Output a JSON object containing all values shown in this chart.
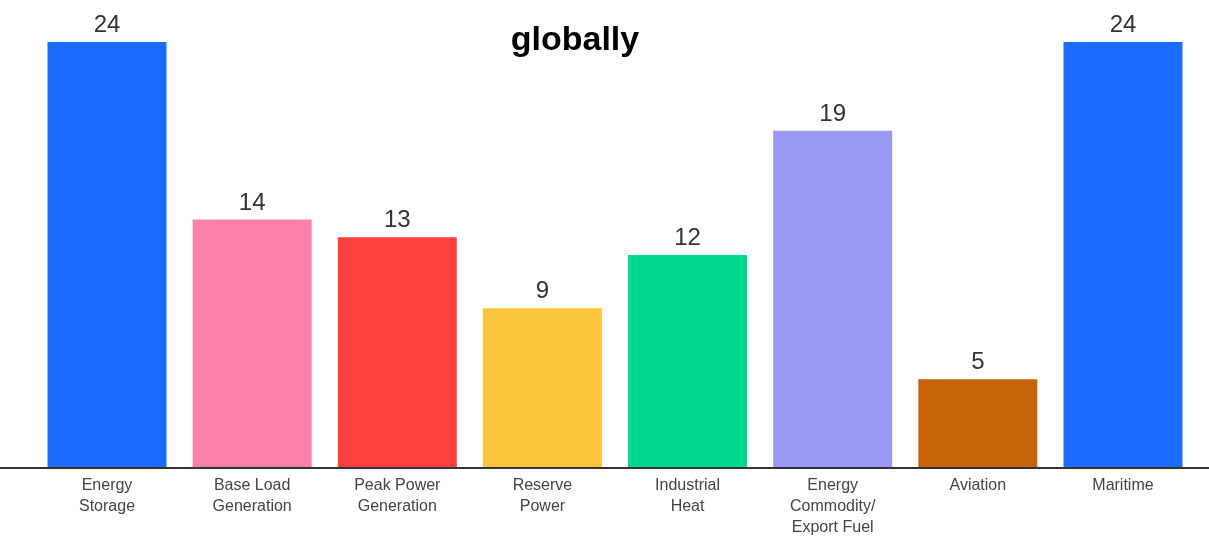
{
  "chart_data": {
    "type": "bar",
    "title": "globally",
    "categories": [
      "Energy Storage",
      "Base Load Generation",
      "Peak Power Generation",
      "Reserve Power",
      "Industrial Heat",
      "Energy Commodity/ Export Fuel",
      "Aviation",
      "Maritime"
    ],
    "values": [
      24,
      14,
      13,
      9,
      12,
      19,
      5,
      24
    ],
    "colors": [
      "#1a6bff",
      "#ff80ab",
      "#ff4040",
      "#fcc43a",
      "#00d68f",
      "#9999f2",
      "#c8620a",
      "#1a6bff"
    ],
    "data_labels": true
  }
}
